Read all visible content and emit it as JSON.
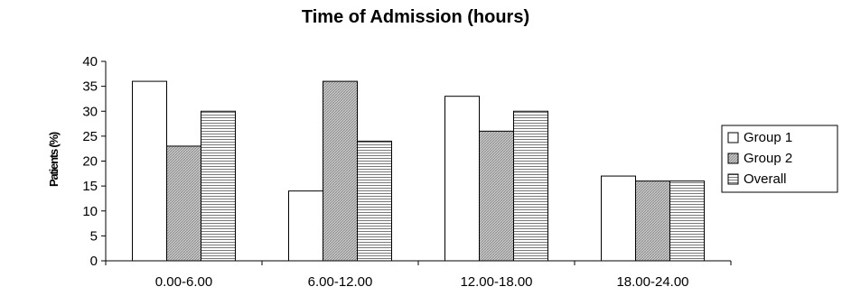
{
  "chart_data": {
    "type": "bar",
    "title": "Time of Admission (hours)",
    "xlabel": "",
    "ylabel": "Patients (%)",
    "ylim": [
      0,
      40
    ],
    "yticks": [
      0,
      5,
      10,
      15,
      20,
      25,
      30,
      35,
      40
    ],
    "grid": false,
    "legend_position": "right",
    "categories": [
      "0.00-6.00",
      "6.00-12.00",
      "12.00-18.00",
      "18.00-24.00"
    ],
    "series": [
      {
        "name": "Group 1",
        "values": [
          36,
          14,
          33,
          17
        ],
        "fill": "plain",
        "color": "#ffffff"
      },
      {
        "name": "Group 2",
        "values": [
          23,
          36,
          26,
          16
        ],
        "fill": "crosshatch",
        "color": "#c8c8c8"
      },
      {
        "name": "Overall",
        "values": [
          30,
          24,
          30,
          16
        ],
        "fill": "horizontal-lines",
        "color": "#ffffff"
      }
    ]
  }
}
